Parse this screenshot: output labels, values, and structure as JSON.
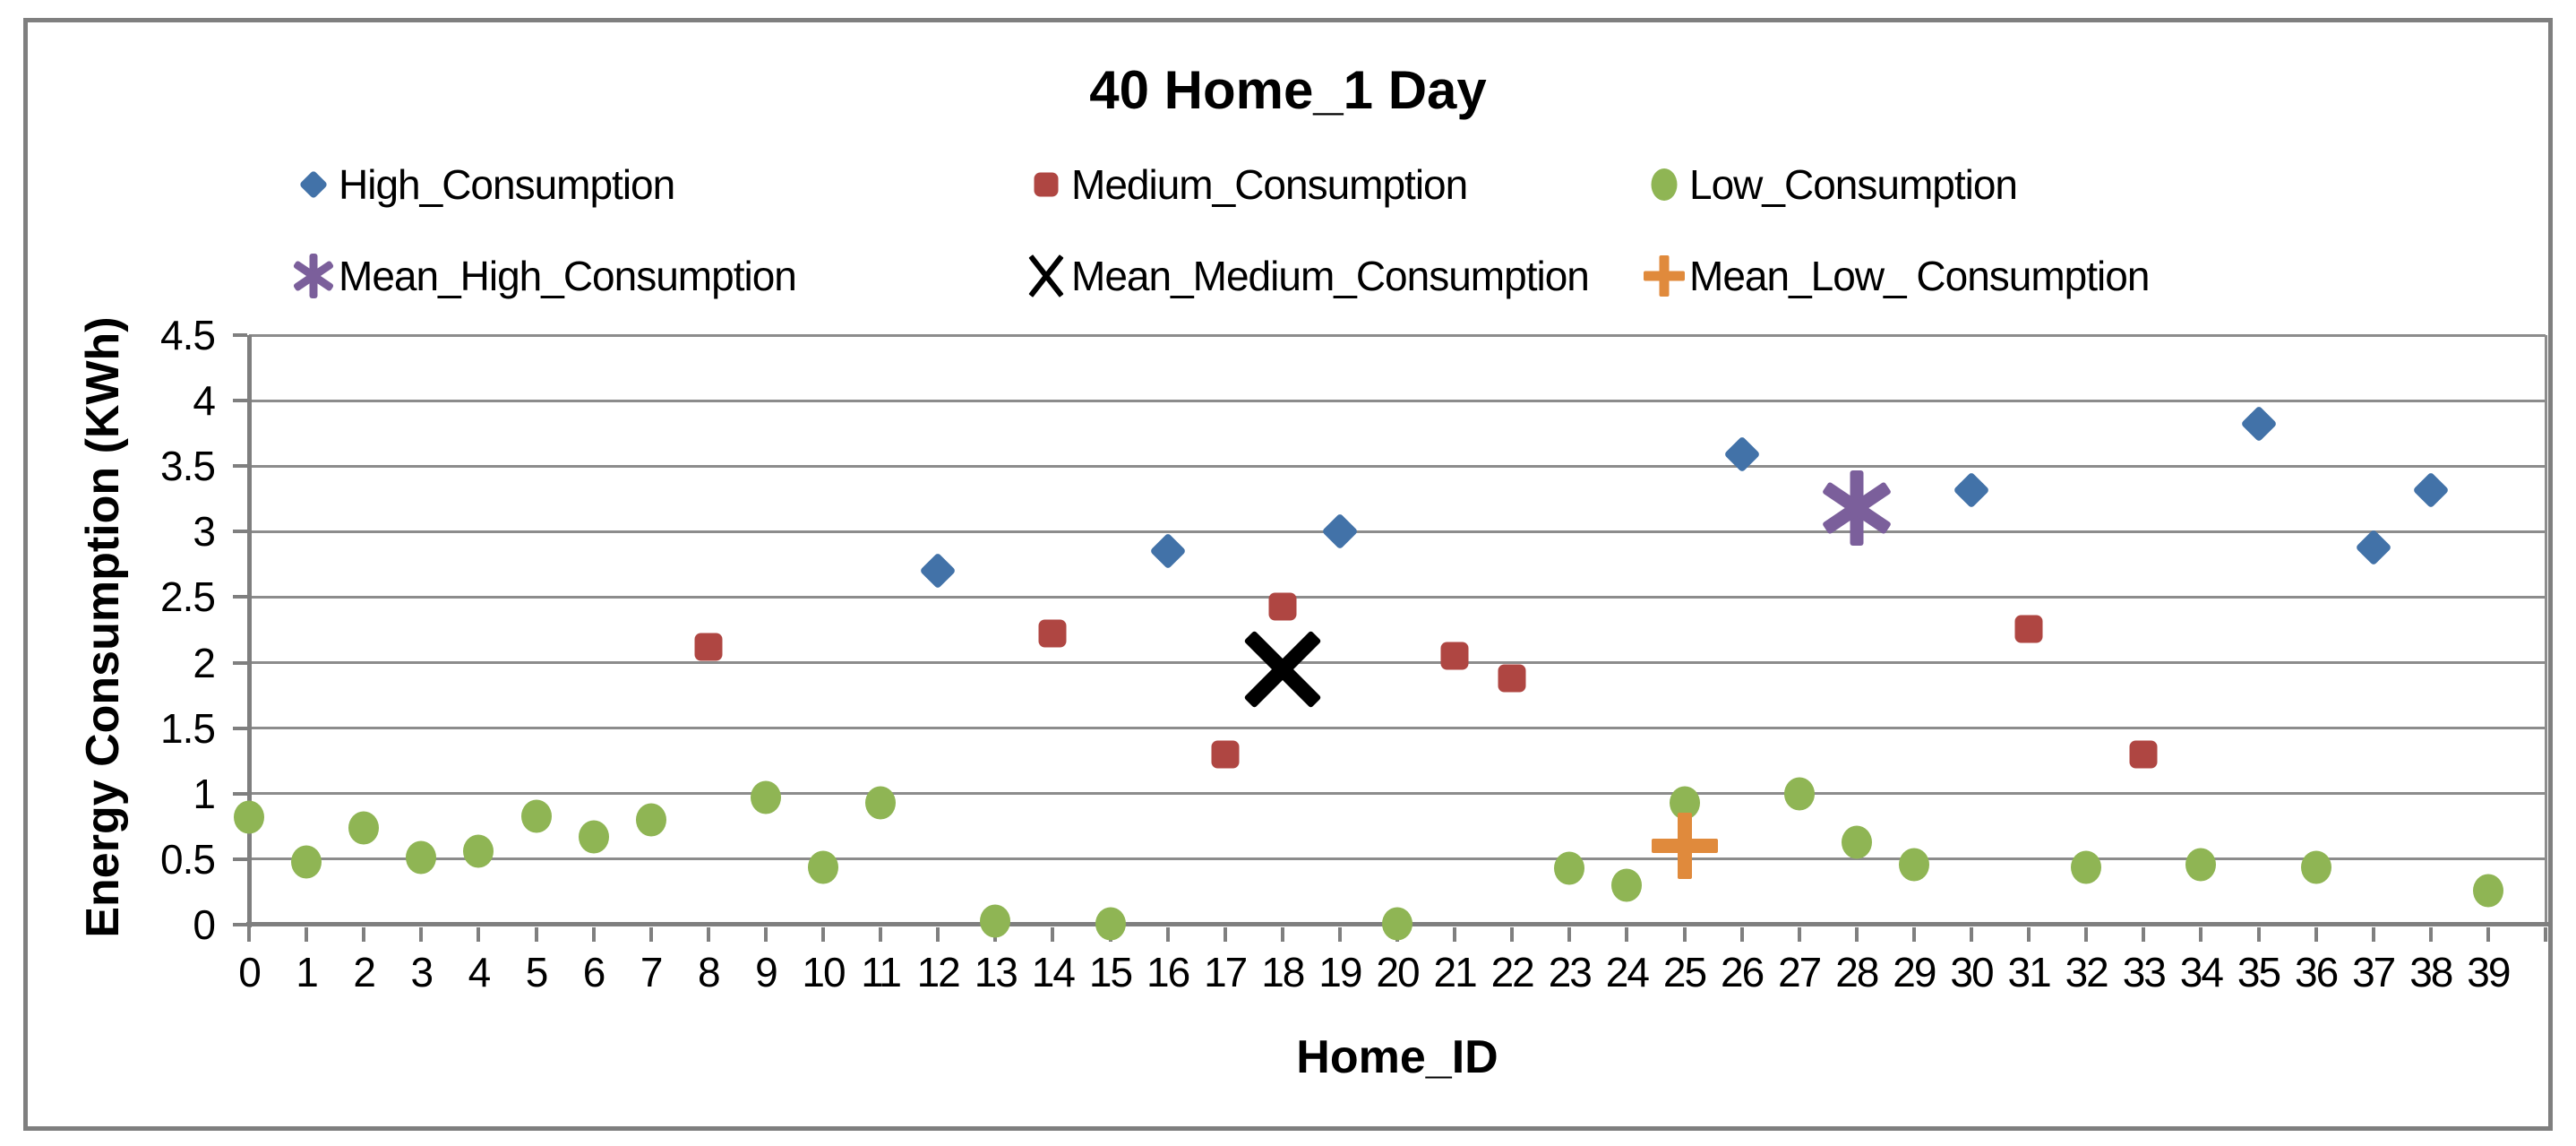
{
  "title": "40 Home_1 Day",
  "axes": {
    "x_title": "Home_ID",
    "y_title": "Energy Consumption (KWh)",
    "x_tick_labels": [
      "0",
      "1",
      "2",
      "3",
      "4",
      "5",
      "6",
      "7",
      "8",
      "9",
      "10",
      "11",
      "12",
      "13",
      "14",
      "15",
      "16",
      "17",
      "18",
      "19",
      "20",
      "21",
      "22",
      "23",
      "24",
      "25",
      "26",
      "27",
      "28",
      "29",
      "30",
      "31",
      "32",
      "33",
      "34",
      "35",
      "36",
      "37",
      "38",
      "39"
    ],
    "y_tick_labels": [
      "0",
      "0.5",
      "1",
      "1.5",
      "2",
      "2.5",
      "3",
      "3.5",
      "4",
      "4.5"
    ]
  },
  "colors": {
    "high": "#4272A8",
    "medium": "#AF4642",
    "low": "#8FB554",
    "mean_high": "#7B5F9B",
    "mean_medium": "#000000",
    "mean_low": "#E08A3C",
    "gridline": "#8C8C8C",
    "axis": "#7F7F7F",
    "border": "#7F7F7F"
  },
  "legend": {
    "rows": [
      [
        {
          "label": "High_Consumption",
          "marker": "diamond",
          "color_key": "high"
        },
        {
          "label": "Medium_Consumption",
          "marker": "square",
          "color_key": "medium"
        },
        {
          "label": "Low_Consumption",
          "marker": "circle",
          "color_key": "low"
        }
      ],
      [
        {
          "label": "Mean_High_Consumption",
          "marker": "asterisk",
          "color_key": "mean_high"
        },
        {
          "label": "Mean_Medium_Consumption",
          "marker": "thin-x",
          "color_key": "mean_medium"
        },
        {
          "label": "Mean_Low_ Consumption",
          "marker": "plus",
          "color_key": "mean_low"
        }
      ]
    ]
  },
  "chart_data": {
    "type": "scatter",
    "title": "40 Home_1 Day",
    "xlabel": "Home_ID",
    "ylabel": "Energy Consumption (KWh)",
    "xlim": [
      0,
      40
    ],
    "ylim": [
      0,
      4.5
    ],
    "y_gridline_step": 0.5,
    "grid": true,
    "legend_position": "top",
    "series": [
      {
        "name": "High_Consumption",
        "marker": "diamond",
        "color_key": "high",
        "points": [
          [
            12,
            2.7
          ],
          [
            16,
            2.85
          ],
          [
            19,
            3.0
          ],
          [
            26,
            3.59
          ],
          [
            30,
            3.32
          ],
          [
            35,
            3.82
          ],
          [
            37,
            2.88
          ],
          [
            38,
            3.32
          ]
        ]
      },
      {
        "name": "Medium_Consumption",
        "marker": "square",
        "color_key": "medium",
        "points": [
          [
            8,
            2.12
          ],
          [
            14,
            2.22
          ],
          [
            17,
            1.3
          ],
          [
            18,
            2.43
          ],
          [
            21,
            2.05
          ],
          [
            22,
            1.88
          ],
          [
            31,
            2.26
          ],
          [
            33,
            1.3
          ]
        ]
      },
      {
        "name": "Low_Consumption",
        "marker": "circle",
        "color_key": "low",
        "points": [
          [
            0,
            0.82
          ],
          [
            1,
            0.48
          ],
          [
            2,
            0.74
          ],
          [
            3,
            0.51
          ],
          [
            4,
            0.56
          ],
          [
            5,
            0.83
          ],
          [
            6,
            0.67
          ],
          [
            7,
            0.8
          ],
          [
            9,
            0.97
          ],
          [
            10,
            0.44
          ],
          [
            11,
            0.93
          ],
          [
            13,
            0.03
          ],
          [
            15,
            0.01
          ],
          [
            20,
            0.01
          ],
          [
            23,
            0.43
          ],
          [
            24,
            0.3
          ],
          [
            25,
            0.93
          ],
          [
            27,
            1.0
          ],
          [
            28,
            0.63
          ],
          [
            29,
            0.46
          ],
          [
            32,
            0.44
          ],
          [
            34,
            0.46
          ],
          [
            36,
            0.44
          ],
          [
            39,
            0.26
          ]
        ]
      },
      {
        "name": "Mean_High_Consumption",
        "marker": "asterisk",
        "color_key": "mean_high",
        "points": [
          [
            28,
            3.18
          ]
        ]
      },
      {
        "name": "Mean_Medium_Consumption",
        "marker": "big-x",
        "color_key": "mean_medium",
        "points": [
          [
            18,
            1.95
          ]
        ]
      },
      {
        "name": "Mean_Low_ Consumption",
        "marker": "plus",
        "color_key": "mean_low",
        "points": [
          [
            25,
            0.6
          ]
        ]
      }
    ]
  }
}
